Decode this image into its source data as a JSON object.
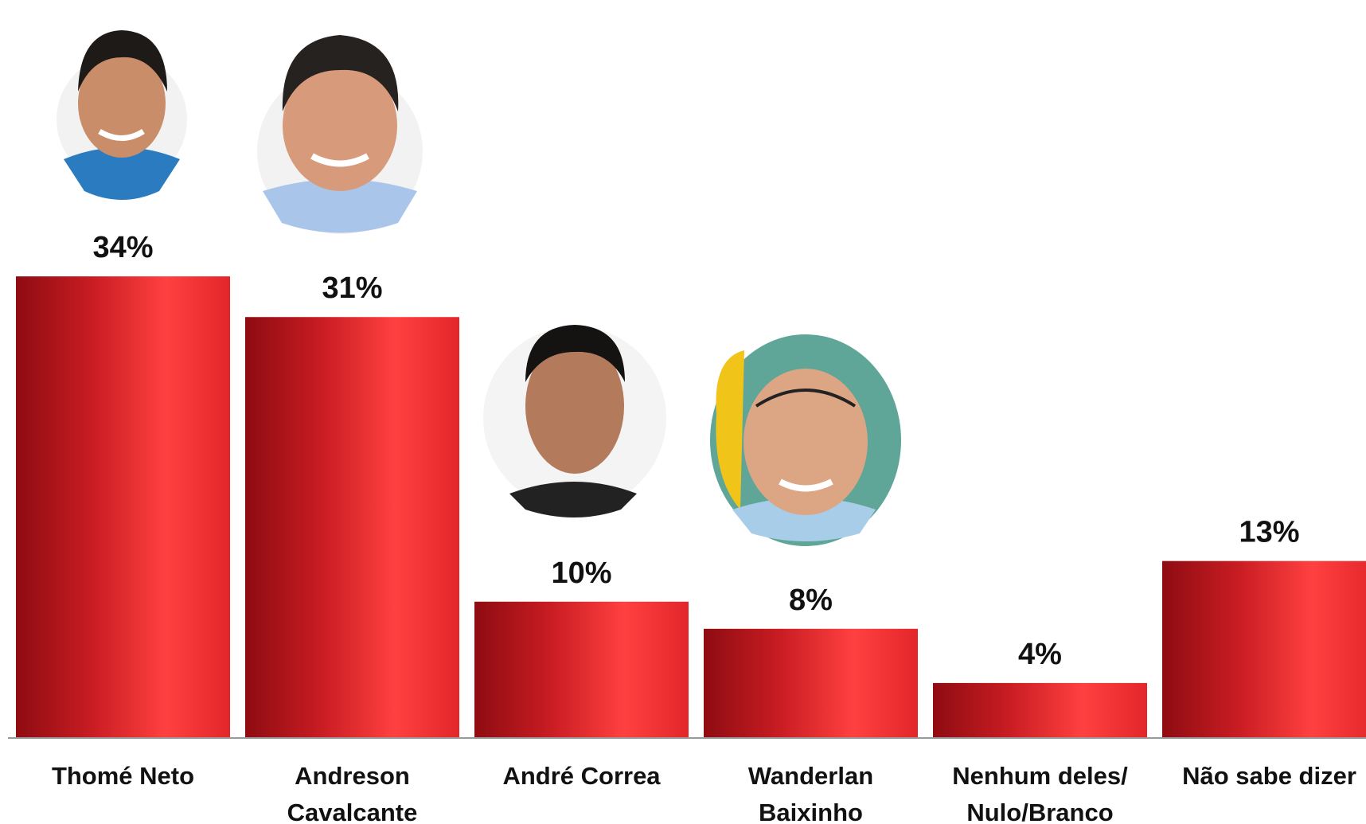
{
  "chart_data": {
    "type": "bar",
    "categories": [
      "Thomé Neto",
      "Andreson\nCavalcante",
      "André Correa",
      "Wanderlan\nBaixinho",
      "Nenhum deles/\nNulo/Branco",
      "Não sabe dizer"
    ],
    "values": [
      34,
      31,
      10,
      8,
      4,
      13
    ],
    "value_labels": [
      "34%",
      "31%",
      "10%",
      "8%",
      "4%",
      "13%"
    ],
    "color": "#e8262b",
    "ylim": [
      0,
      40
    ]
  }
}
